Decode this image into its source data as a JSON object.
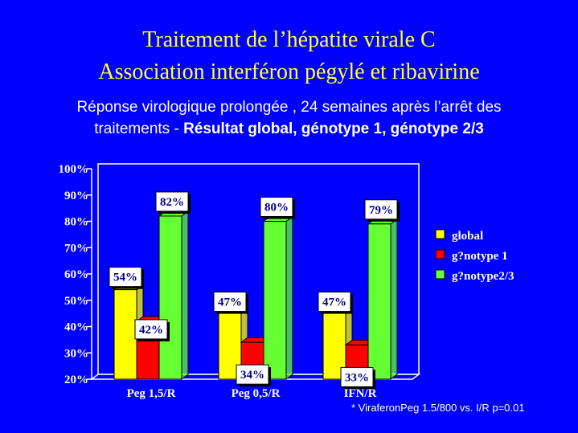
{
  "title_line1": "Traitement de l’hépatite virale C",
  "title_line2": "Association interféron  pégylé et ribavirine",
  "subtitle_line1": "Réponse virologique prolongée , 24 semaines après l’arrêt des",
  "subtitle_line2_prefix": "traitements - ",
  "subtitle_line2_bold": "Résultat global, génotype 1, génotype 2/3",
  "footnote": "* ViraferonPeg 1.5/800  vs. I/R  p=0.01",
  "chart_data": {
    "type": "bar",
    "categories": [
      "Peg 1,5/R",
      "Peg 0,5/R",
      "IFN/R"
    ],
    "series": [
      {
        "name": "global",
        "color": "#ffff00",
        "values": [
          54,
          47,
          47
        ],
        "labels": [
          "54%",
          "47%",
          "47%"
        ]
      },
      {
        "name": "g?notype 1",
        "color": "#ff0000",
        "values": [
          42,
          34,
          33
        ],
        "labels": [
          "42%",
          "34%",
          "33%"
        ]
      },
      {
        "name": "g?notype2/3",
        "color": "#66ff33",
        "values": [
          82,
          80,
          79
        ],
        "labels": [
          "82%",
          "80%",
          "79%"
        ]
      }
    ],
    "ylim": [
      20,
      100
    ],
    "yticks": [
      "20%",
      "30%",
      "40%",
      "50%",
      "60%",
      "70%",
      "80%",
      "90%",
      "100%"
    ],
    "grid": false,
    "legend_position": "right"
  }
}
